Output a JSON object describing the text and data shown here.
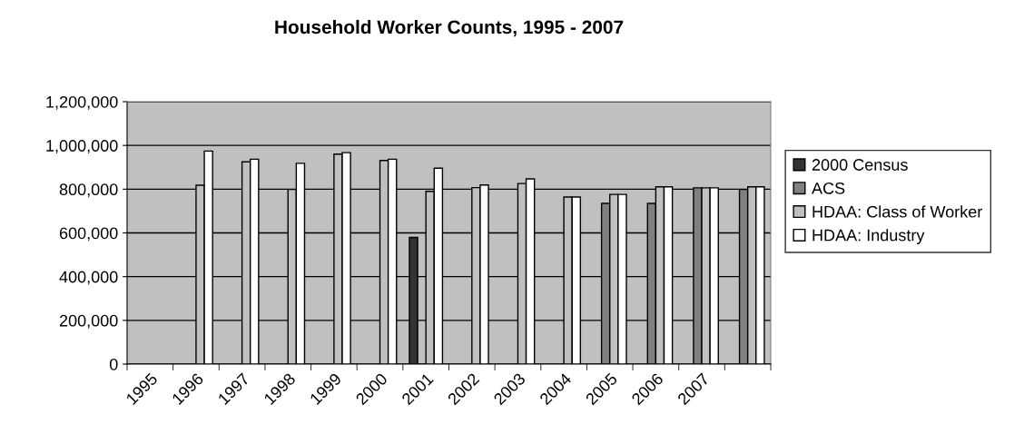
{
  "chart_data": {
    "type": "bar",
    "title": "Household Worker Counts, 1995 - 2007",
    "categories": [
      "1995",
      "1996",
      "1997",
      "1998",
      "1999",
      "2000",
      "2001",
      "2002",
      "2003",
      "2004",
      "2005",
      "2006",
      "2007",
      null
    ],
    "series": [
      {
        "name": "2000 Census",
        "color": "#333333",
        "values": [
          null,
          null,
          null,
          null,
          null,
          null,
          579000,
          null,
          null,
          null,
          null,
          null,
          null,
          null
        ]
      },
      {
        "name": "ACS",
        "color": "#808080",
        "values": [
          null,
          null,
          null,
          null,
          null,
          null,
          null,
          null,
          null,
          null,
          735000,
          735000,
          806000,
          799000
        ]
      },
      {
        "name": "HDAA: Class of Worker",
        "color": "#c0c0c0",
        "values": [
          null,
          818000,
          925000,
          799000,
          960000,
          931000,
          790000,
          807000,
          826000,
          764000,
          776000,
          811000,
          806000,
          811000
        ]
      },
      {
        "name": "HDAA: Industry",
        "color": "#ffffff",
        "values": [
          null,
          974000,
          937000,
          918000,
          967000,
          937000,
          896000,
          819000,
          847000,
          764000,
          776000,
          811000,
          806000,
          811000
        ]
      }
    ],
    "ylim": [
      0,
      1200000
    ],
    "yticks": [
      {
        "value": 0,
        "label": "0"
      },
      {
        "value": 200000,
        "label": "200,000"
      },
      {
        "value": 400000,
        "label": "400,000"
      },
      {
        "value": 600000,
        "label": "600,000"
      },
      {
        "value": 800000,
        "label": "800,000"
      },
      {
        "value": 1000000,
        "label": "1,000,000"
      },
      {
        "value": 1200000,
        "label": "1,200,000"
      }
    ],
    "grid": "y",
    "legend": "right"
  }
}
